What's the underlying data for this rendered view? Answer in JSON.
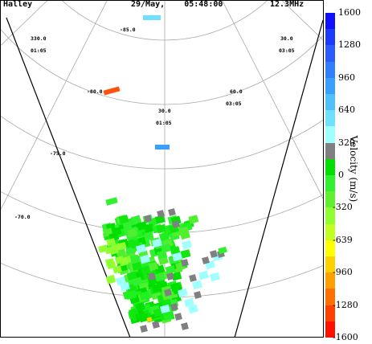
{
  "header": {
    "station": "Halley",
    "datetime": "29/May,    05:48:00",
    "frequency": "12.3MHz"
  },
  "map_labels": {
    "lon_left": "330.0",
    "time_left": "01:05",
    "lat_top": "-85.0",
    "lat_mid": "-80.0",
    "lat_low": "-75.0",
    "lat_bottom": "-70.0",
    "lon_right": "30.0",
    "time_right": "03:05",
    "lon_right2": "60.0",
    "time_right2": "03:05",
    "lon_center": "30.0",
    "time_center": "01:05"
  },
  "colorbar": {
    "title": "Velocity (m/s)",
    "ticks": [
      "1600",
      "1280",
      "960",
      "640",
      "320",
      "0",
      "-320",
      "-639",
      "-960",
      "-1280",
      "-1600"
    ],
    "colors": [
      "#1010ff",
      "#1a3cff",
      "#2a5cff",
      "#2f7fff",
      "#3aa0ff",
      "#50c0ff",
      "#70e0ff",
      "#a0ffff",
      "#808080",
      "#00e000",
      "#30f030",
      "#60f030",
      "#90ff30",
      "#c0ff20",
      "#ffff00",
      "#ffd000",
      "#ffa000",
      "#ff7000",
      "#ff4000",
      "#ff1000"
    ]
  },
  "colors": {
    "ground_scatter": "#808080",
    "grid": "#aaaaaa"
  }
}
